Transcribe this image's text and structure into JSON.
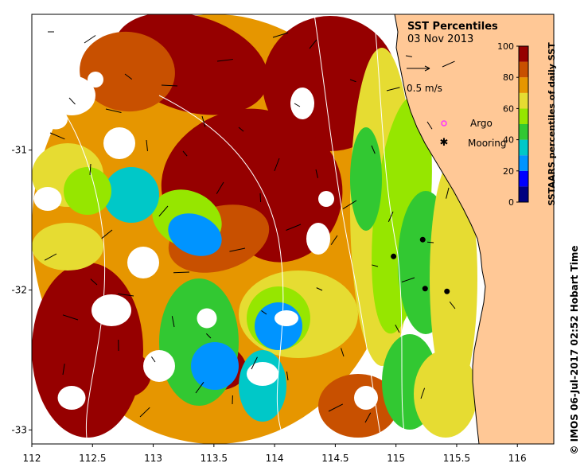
{
  "title": "SST Percentiles",
  "date": "03 Nov 2013",
  "vector_scale_label": "0.5 m/s",
  "legend": {
    "argo_label": "Argo",
    "mooring_label": "Mooring",
    "argo_color": "#ff33ff",
    "mooring_color": "#000000"
  },
  "colorbar": {
    "label": "SSTAARS percentiles of daily SST",
    "ticks": [
      "0",
      "20",
      "40",
      "60",
      "80",
      "100"
    ],
    "colors": [
      "#000080",
      "#0000ff",
      "#0094ff",
      "#00c8c8",
      "#32c832",
      "#96e600",
      "#e6dc32",
      "#e69600",
      "#c85000",
      "#960000"
    ]
  },
  "axes": {
    "x_ticks": [
      "112",
      "112.5",
      "113",
      "113.5",
      "114",
      "114.5",
      "115",
      "115.5",
      "116"
    ],
    "y_ticks": [
      "-31",
      "-32",
      "-33"
    ]
  },
  "credit": "© IMOS 06-Jul-2017 02:52 Hobart Time",
  "colors": {
    "land": "#ffc896",
    "coast_outline": "#000000",
    "contour": "#ffffff",
    "vector": "#000000"
  },
  "moorings_lonlat": [
    [
      115.22,
      -31.64
    ],
    [
      114.98,
      -31.76
    ],
    [
      115.24,
      -31.99
    ],
    [
      115.42,
      -32.01
    ]
  ]
}
